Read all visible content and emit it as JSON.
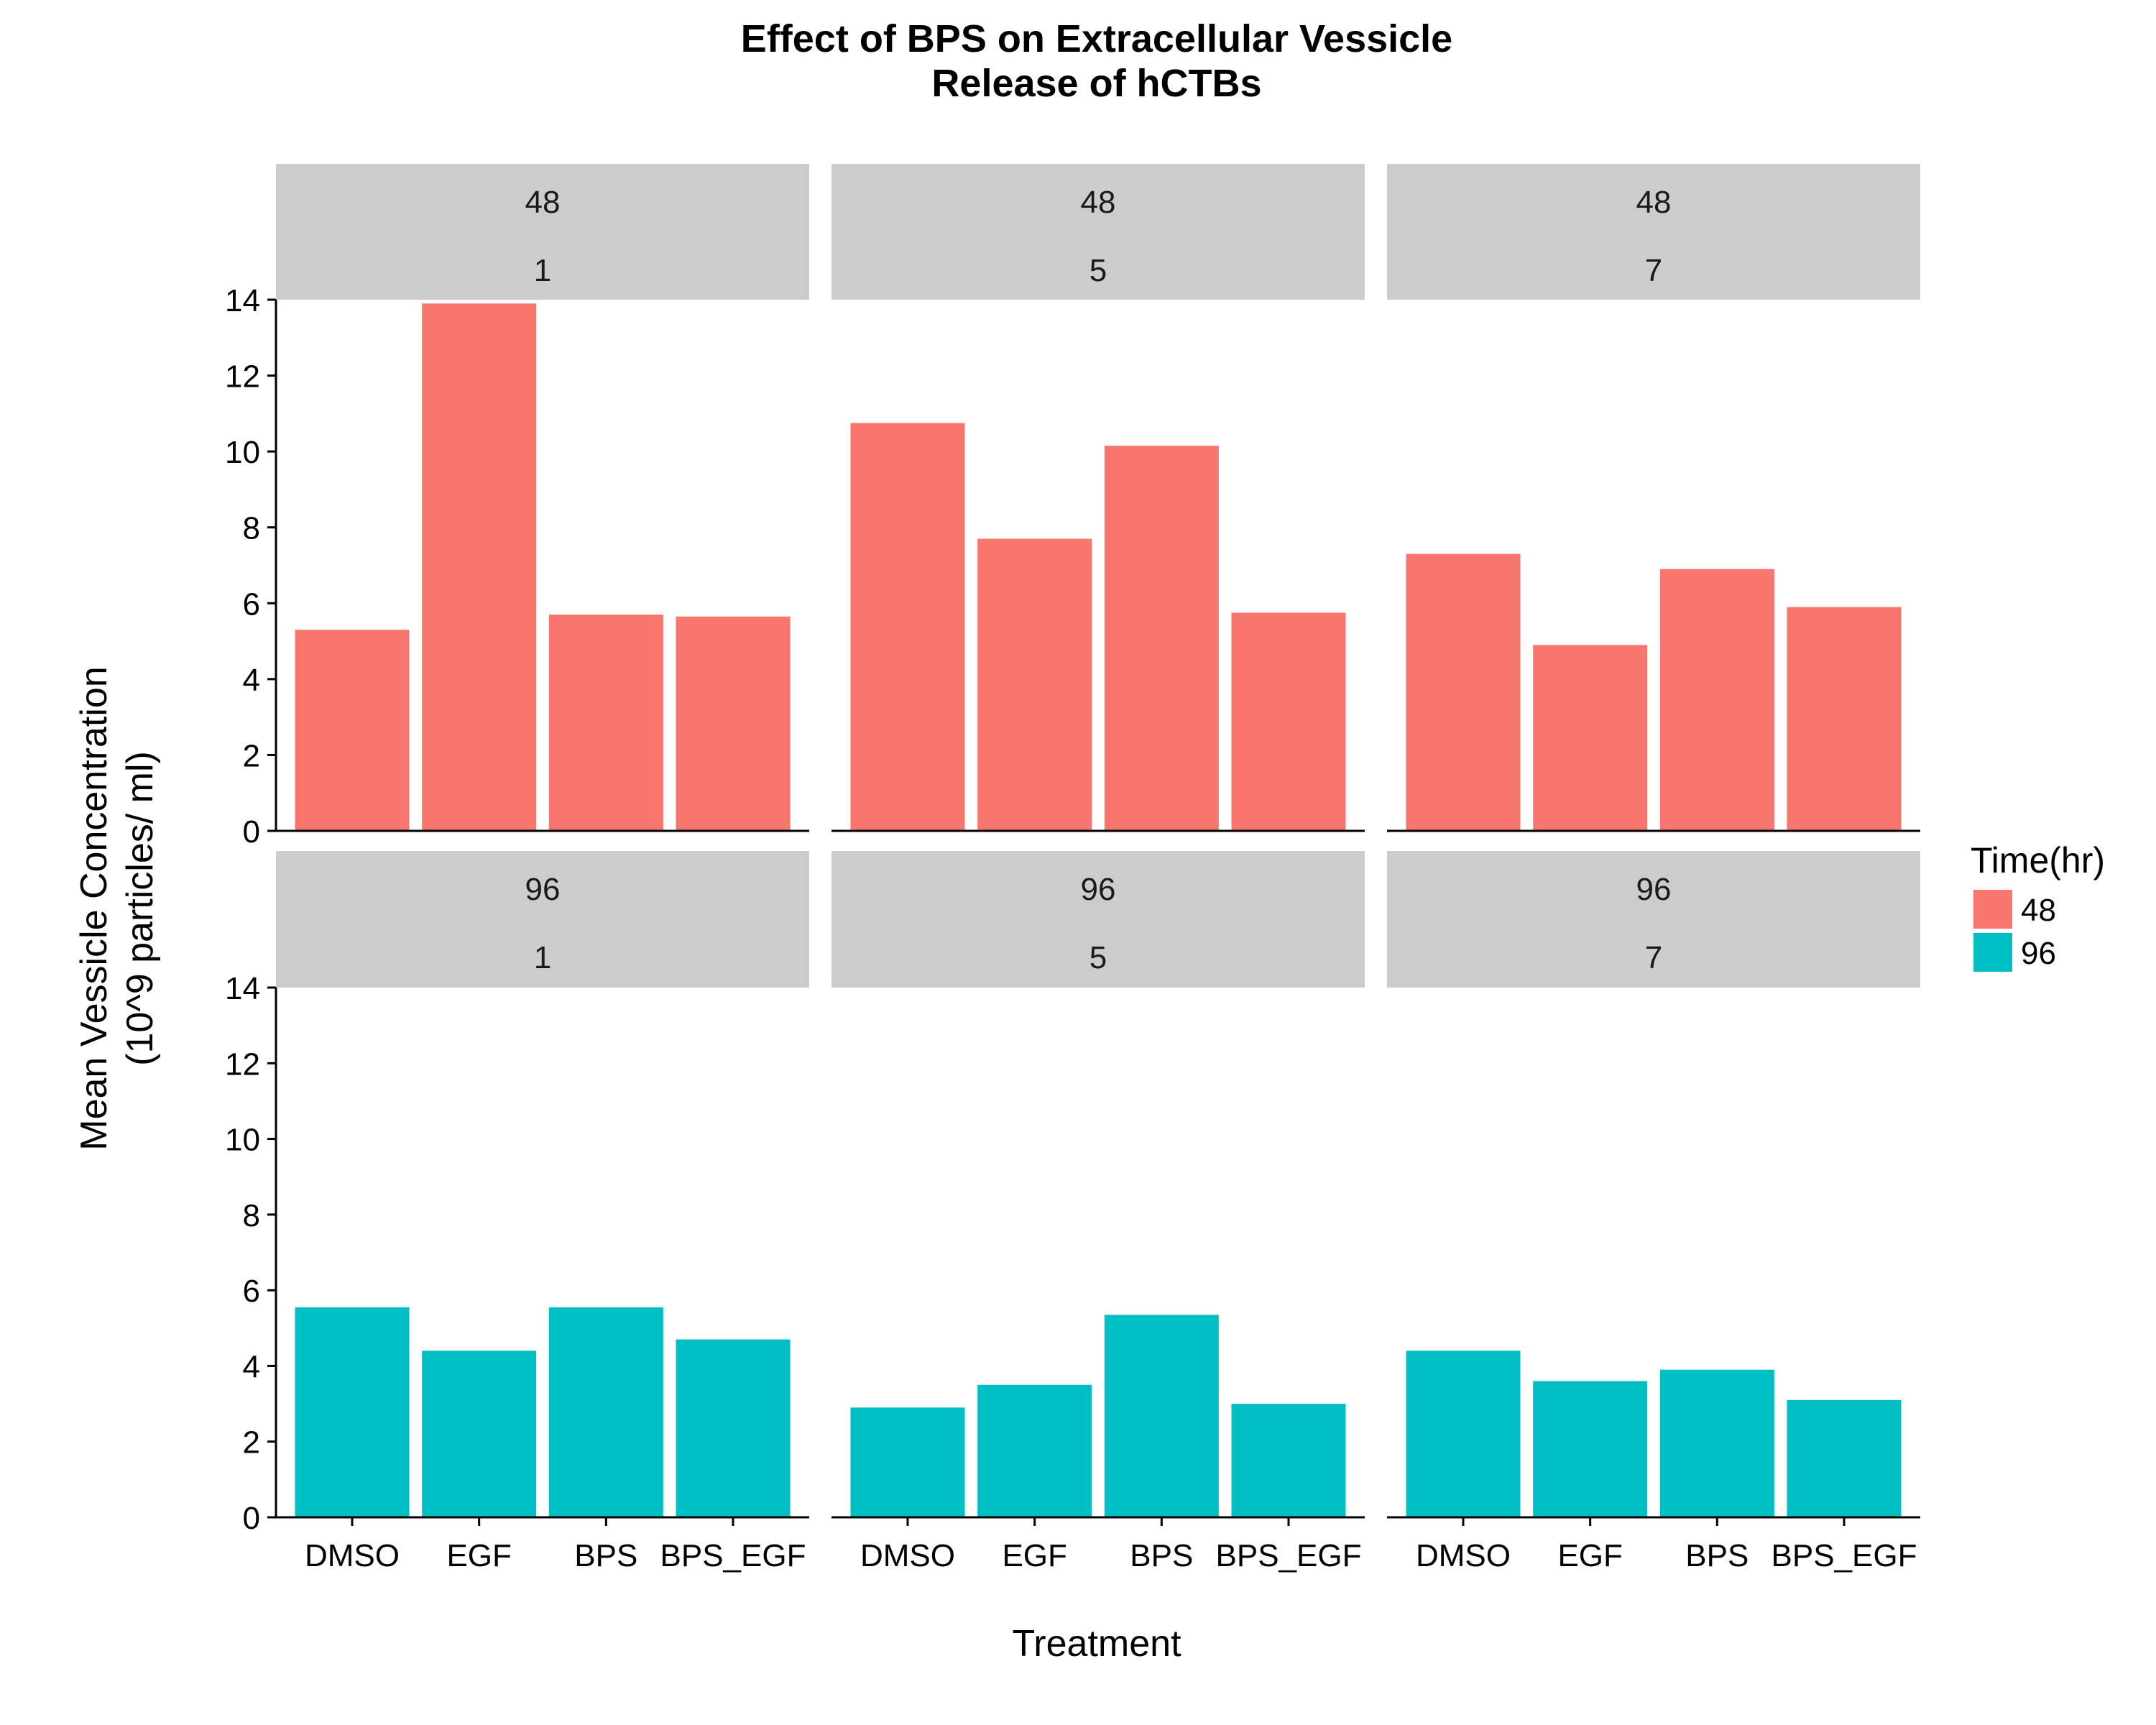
{
  "chart_data": {
    "type": "bar",
    "title": [
      "Effect of BPS on Extracellular Vessicle",
      "Release of hCTBs"
    ],
    "xlabel": "Treatment",
    "ylabel": [
      "Mean Vessicle Concentration",
      "(10^9 particles/ ml)"
    ],
    "categories": [
      "DMSO",
      "EGF",
      "BPS",
      "BPS_EGF"
    ],
    "ylim": [
      0,
      14
    ],
    "yticks": [
      "0",
      "2",
      "4",
      "6",
      "8",
      "10",
      "12",
      "14"
    ],
    "grid": false,
    "legend": {
      "title": "Time(hr)",
      "placement": "right",
      "entries": [
        {
          "label": "48",
          "color": "#F8766D"
        },
        {
          "label": "96",
          "color": "#00BFC4"
        }
      ]
    },
    "strip_color": "#CCCCCC",
    "panels": [
      {
        "row": 0,
        "col": 0,
        "strip": [
          "48",
          "1"
        ],
        "series": "48",
        "values": [
          5.3,
          13.9,
          5.7,
          5.65
        ]
      },
      {
        "row": 0,
        "col": 1,
        "strip": [
          "48",
          "5"
        ],
        "series": "48",
        "values": [
          10.75,
          7.7,
          10.15,
          5.75
        ]
      },
      {
        "row": 0,
        "col": 2,
        "strip": [
          "48",
          "7"
        ],
        "series": "48",
        "values": [
          7.3,
          4.9,
          6.9,
          5.9
        ]
      },
      {
        "row": 1,
        "col": 0,
        "strip": [
          "96",
          "1"
        ],
        "series": "96",
        "values": [
          5.55,
          4.4,
          5.55,
          4.7
        ]
      },
      {
        "row": 1,
        "col": 1,
        "strip": [
          "96",
          "5"
        ],
        "series": "96",
        "values": [
          2.9,
          3.5,
          5.35,
          3.0
        ]
      },
      {
        "row": 1,
        "col": 2,
        "strip": [
          "96",
          "7"
        ],
        "series": "96",
        "values": [
          4.4,
          3.6,
          3.9,
          3.1
        ]
      }
    ]
  }
}
